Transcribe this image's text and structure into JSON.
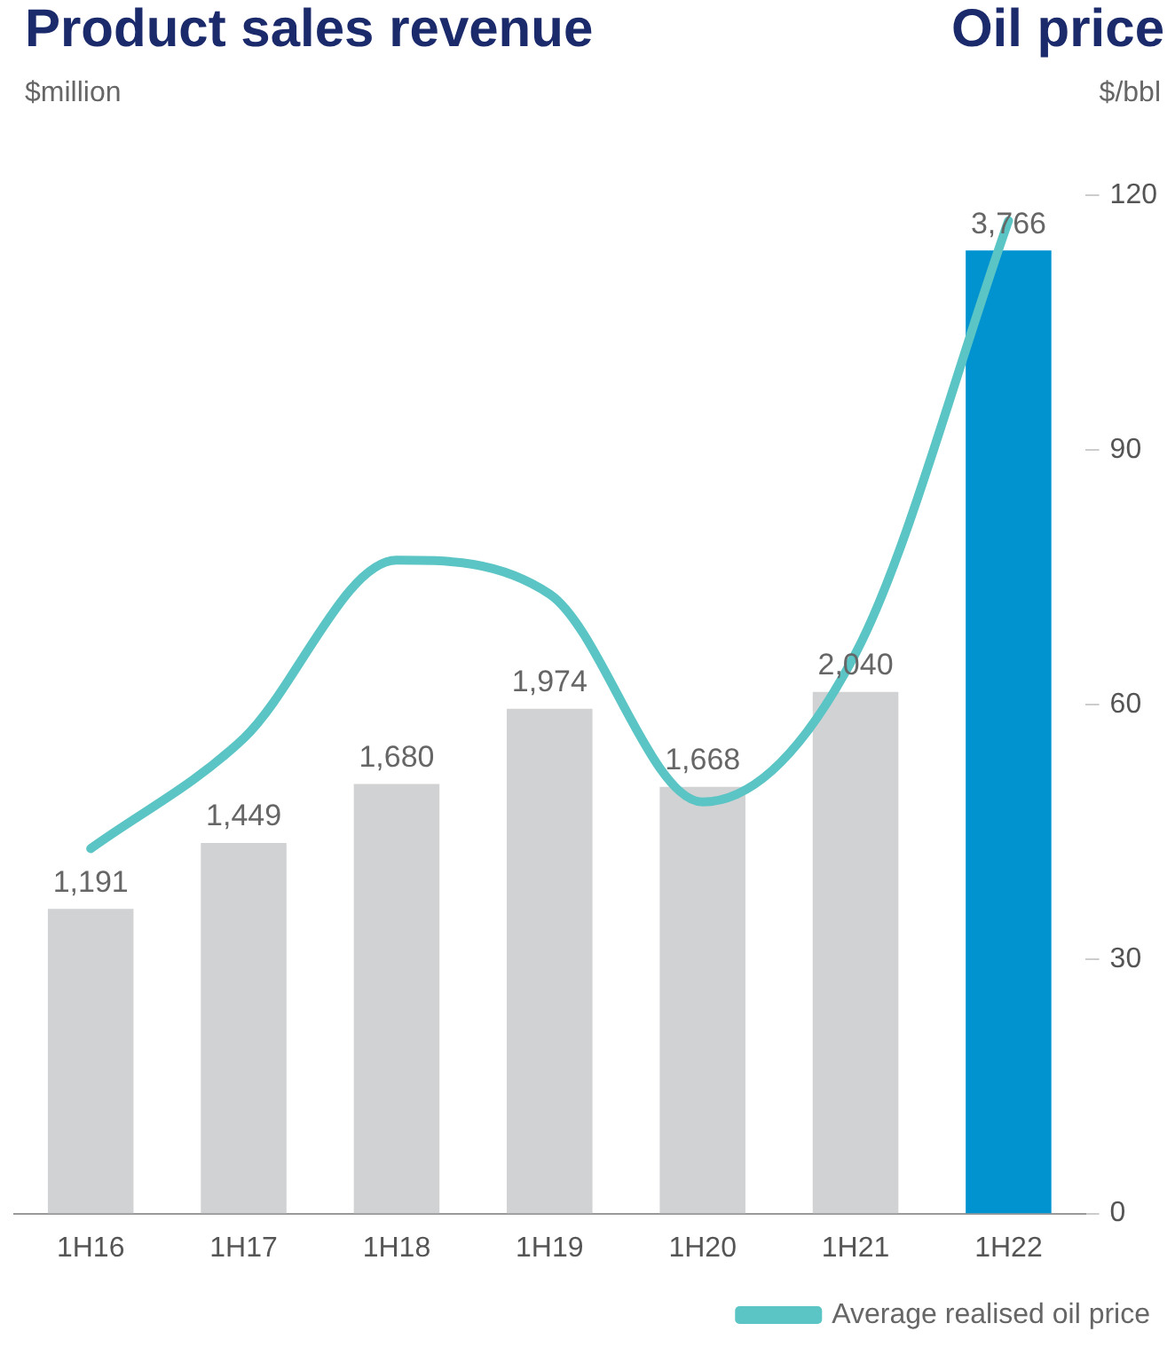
{
  "chart_data": {
    "type": "bar",
    "title": "Product sales revenue",
    "ylabel": "$million",
    "y2label": "$/bbl",
    "annotations": [
      "Oil price"
    ],
    "categories": [
      "1H16",
      "1H17",
      "1H18",
      "1H19",
      "1H20",
      "1H21",
      "1H22"
    ],
    "series": [
      {
        "colors": [
          "#d1d2d4",
          "#d1d2d4",
          "#d1d2d4",
          "#d1d2d4",
          "#d1d2d4",
          "#d1d2d4",
          "#0093d0"
        ],
        "values": [
          1191,
          1449,
          1680,
          1974,
          1668,
          2040,
          3766
        ],
        "value_labels": [
          "1,191",
          "1,449",
          "1,680",
          "1,974",
          "1,668",
          "2,040",
          "3,766"
        ]
      },
      {
        "type": "line",
        "name": "Average realised oil price",
        "color": "#5bc4c4",
        "axis": "y2",
        "values": [
          43,
          56,
          77,
          73,
          48.5,
          66,
          117
        ]
      }
    ],
    "y2lim": [
      0,
      120
    ],
    "y2ticks": [
      0,
      30,
      60,
      90,
      120
    ],
    "legend": "bottom right",
    "marker": "none"
  }
}
